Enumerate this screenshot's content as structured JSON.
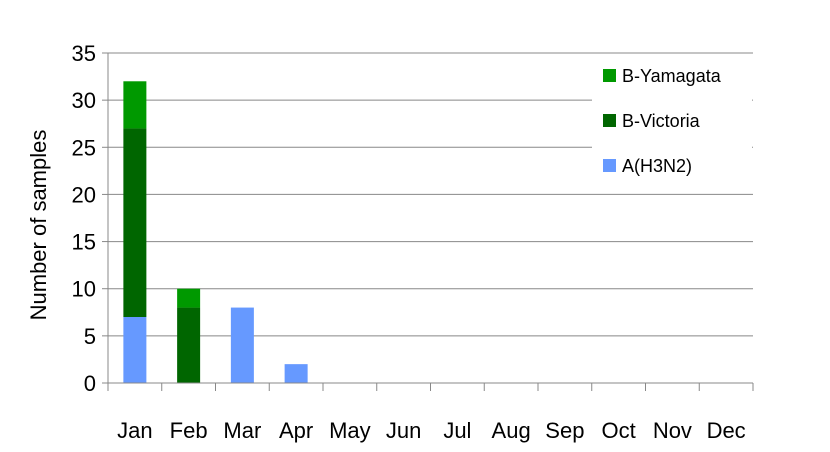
{
  "chart_data": {
    "type": "bar",
    "stacked": true,
    "ylabel": "Number of samples",
    "xlabel": "",
    "ylim": [
      0,
      35
    ],
    "yticks": [
      0,
      5,
      10,
      15,
      20,
      25,
      30,
      35
    ],
    "grid": true,
    "legend_position": "top-right",
    "categories": [
      "Jan",
      "Feb",
      "Mar",
      "Apr",
      "May",
      "Jun",
      "Jul",
      "Aug",
      "Sep",
      "Oct",
      "Nov",
      "Dec"
    ],
    "series": [
      {
        "name": "A(H3N2)",
        "color": "#6699ff",
        "values": [
          7,
          0,
          8,
          2,
          0,
          0,
          0,
          0,
          0,
          0,
          0,
          0
        ]
      },
      {
        "name": "B-Victoria",
        "color": "#006600",
        "values": [
          20,
          8,
          0,
          0,
          0,
          0,
          0,
          0,
          0,
          0,
          0,
          0
        ]
      },
      {
        "name": "B-Yamagata",
        "color": "#009900",
        "values": [
          5,
          2,
          0,
          0,
          0,
          0,
          0,
          0,
          0,
          0,
          0,
          0
        ]
      }
    ],
    "legend_order": [
      "B-Yamagata",
      "B-Victoria",
      "A(H3N2)"
    ]
  }
}
